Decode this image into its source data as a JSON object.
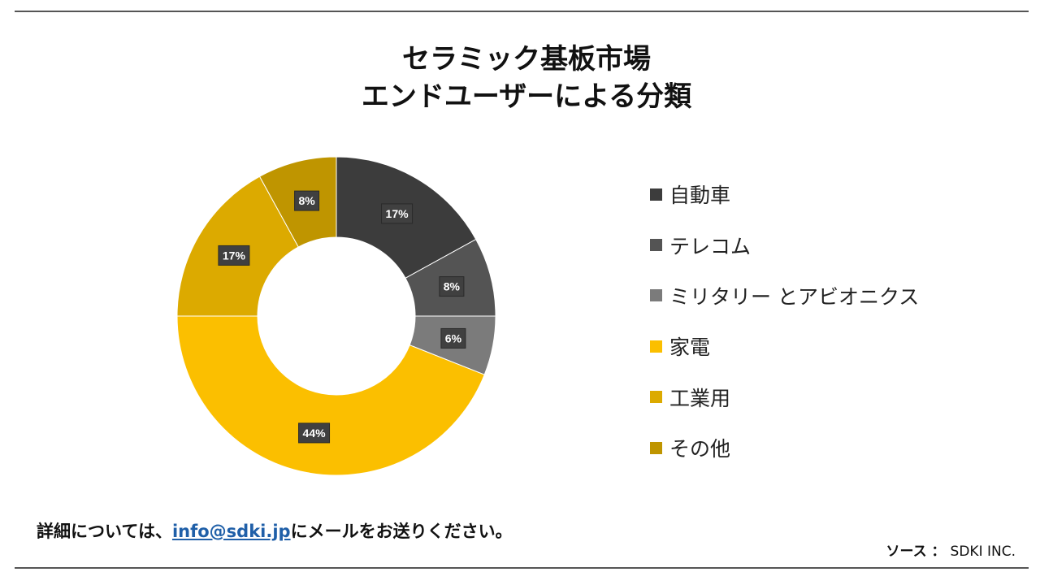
{
  "title": {
    "line1": "セラミック基板市場",
    "line2": "エンドユーザーによる分類"
  },
  "chart_data": {
    "type": "donut",
    "series": [
      {
        "name": "自動車",
        "value": 17,
        "label": "17%",
        "color": "#3c3c3c"
      },
      {
        "name": "テレコム",
        "value": 8,
        "label": "8%",
        "color": "#545454"
      },
      {
        "name": "ミリタリー とアビオニクス",
        "value": 6,
        "label": "6%",
        "color": "#7b7b7b"
      },
      {
        "name": "家電",
        "value": 44,
        "label": "44%",
        "color": "#fbbf00"
      },
      {
        "name": "工業用",
        "value": 17,
        "label": "17%",
        "color": "#dcaa00"
      },
      {
        "name": "その他",
        "value": 8,
        "label": "8%",
        "color": "#bf9500"
      }
    ],
    "legend_position": "right"
  },
  "footer": {
    "prefix": "詳細については、",
    "email": "info@sdki.jp",
    "suffix": "にメールをお送りください。"
  },
  "source": {
    "label": "ソース ：",
    "value": "SDKI INC."
  }
}
